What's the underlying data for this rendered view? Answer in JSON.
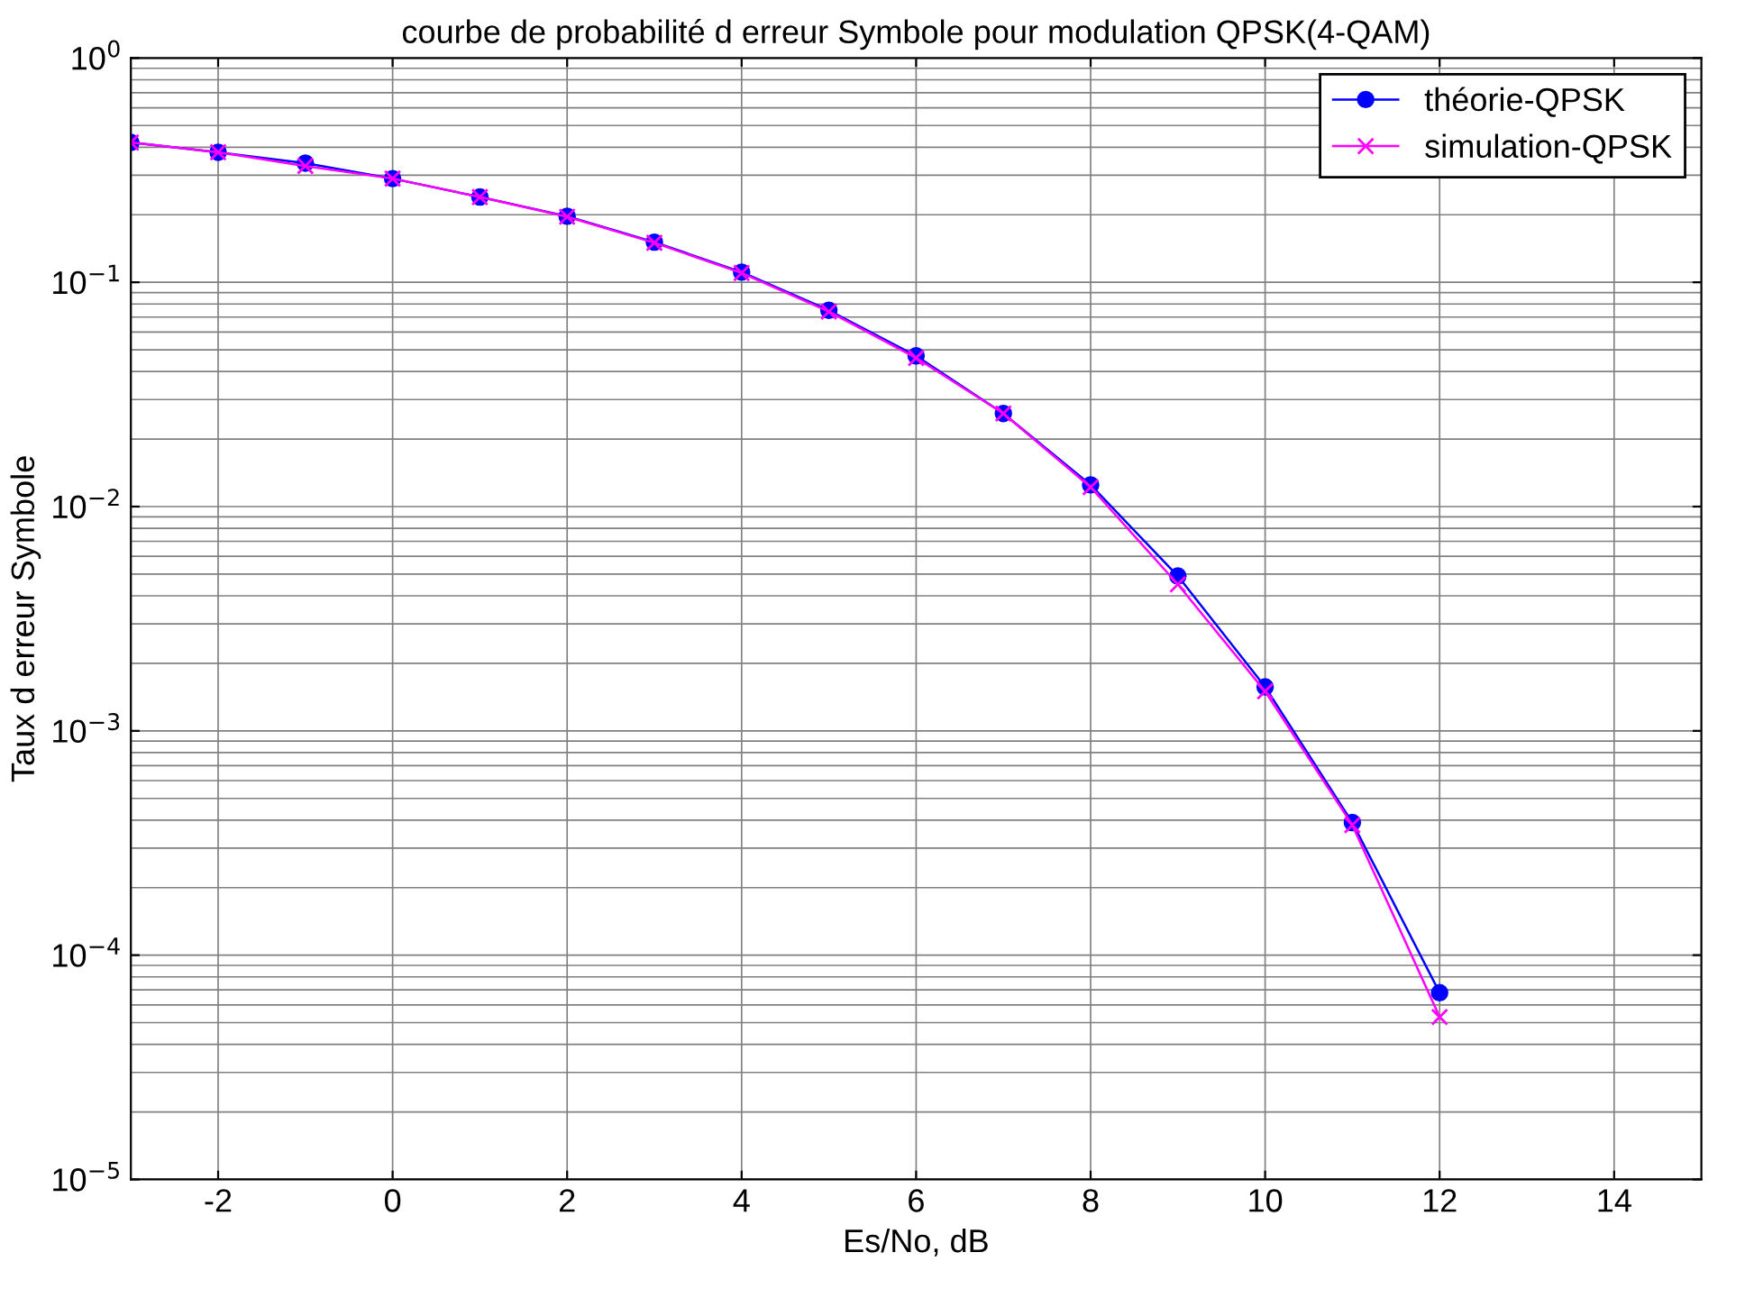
{
  "chart_data": {
    "type": "line",
    "title": "courbe de probabilité d erreur Symbole pour modulation QPSK(4-QAM)",
    "xlabel": "Es/No, dB",
    "ylabel": "Taux d erreur Symbole",
    "x": [
      -3,
      -2,
      -1,
      0,
      1,
      2,
      3,
      4,
      5,
      6,
      7,
      8,
      9,
      10,
      11,
      12
    ],
    "series": [
      {
        "name": "théorie-QPSK",
        "color": "#0000ff",
        "marker": "circle",
        "values": [
          0.42,
          0.38,
          0.34,
          0.29,
          0.24,
          0.197,
          0.151,
          0.111,
          0.075,
          0.047,
          0.026,
          0.0125,
          0.0049,
          0.00157,
          0.00039,
          6.8e-05
        ]
      },
      {
        "name": "simulation-QPSK",
        "color": "#ff00ff",
        "marker": "cross",
        "values": [
          0.42,
          0.38,
          0.33,
          0.29,
          0.24,
          0.196,
          0.15,
          0.11,
          0.074,
          0.046,
          0.026,
          0.0122,
          0.0045,
          0.0015,
          0.00038,
          5.3e-05
        ]
      }
    ],
    "log": "y",
    "xlim": [
      -3,
      15
    ],
    "xticks": [
      -2,
      0,
      2,
      4,
      6,
      8,
      10,
      12,
      14
    ],
    "ylim": [
      1e-05,
      1
    ],
    "yticks": [
      {
        "value": 1e-05,
        "label": "10$^{−5}$"
      },
      {
        "value": 0.0001,
        "label": "10$^{−4}$"
      },
      {
        "value": 0.001,
        "label": "10$^{−3}$"
      },
      {
        "value": 0.01,
        "label": "10$^{−2}$"
      },
      {
        "value": 0.1,
        "label": "10$^{−1}$"
      },
      {
        "value": 1,
        "label": "10$^{0}$"
      }
    ],
    "grid": true,
    "legend": "top right",
    "line_style": "solid"
  }
}
